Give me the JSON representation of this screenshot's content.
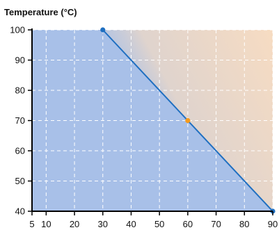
{
  "chart_data": {
    "type": "line",
    "title": "",
    "ylabel": "Temperature (°C)",
    "xlabel": "",
    "x_ticks": [
      5,
      10,
      20,
      30,
      40,
      50,
      60,
      70,
      80,
      90
    ],
    "y_ticks": [
      40,
      50,
      60,
      70,
      80,
      90,
      100
    ],
    "xlim": [
      5,
      90
    ],
    "ylim": [
      40,
      100
    ],
    "grid": true,
    "series": [
      {
        "x": [
          30,
          90
        ],
        "y": [
          100,
          40
        ]
      }
    ],
    "points": [
      {
        "x": 30,
        "y": 100,
        "color": "#1f6fc1"
      },
      {
        "x": 60,
        "y": 70,
        "color": "#f59a1b"
      },
      {
        "x": 90,
        "y": 40,
        "color": "#1f6fc1"
      }
    ],
    "colors": {
      "below_fill": "#a8c0e8",
      "above_fill": "#f7dcc2",
      "line": "#1f6fc1",
      "grid": "#ffffff",
      "axis": "#000000"
    }
  }
}
